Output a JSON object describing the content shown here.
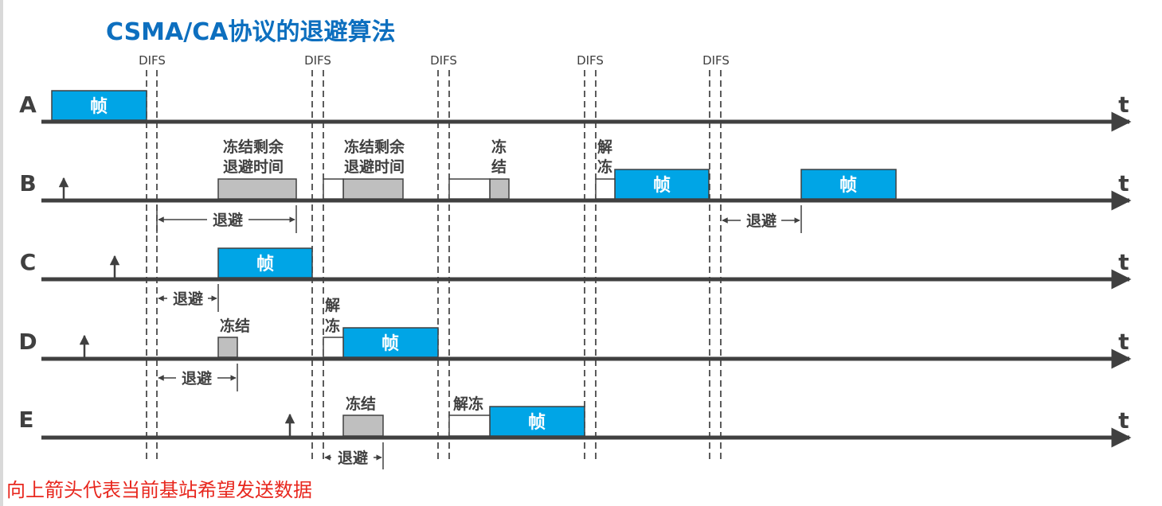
{
  "title": "CSMA/CA协议的退避算法",
  "difs_label": "DIFS",
  "frame_label": "帧",
  "time_label": "t",
  "stations": [
    "A",
    "B",
    "C",
    "D",
    "E"
  ],
  "labels": {
    "freeze_remaining": [
      "冻结剩余",
      "退避时间"
    ],
    "freeze_stacked": [
      "冻",
      "结"
    ],
    "unfreeze_stacked": [
      "解",
      "冻"
    ],
    "freeze": "冻结",
    "unfreeze": "解冻",
    "backoff": "退避"
  },
  "note": "向上箭头代表当前基站希望发送数据",
  "colors": {
    "title": "#0d6fbf",
    "frame": "#00a5e6",
    "freeze_block": "#bfbfbf",
    "axis": "#404040",
    "note": "#e8271e"
  }
}
